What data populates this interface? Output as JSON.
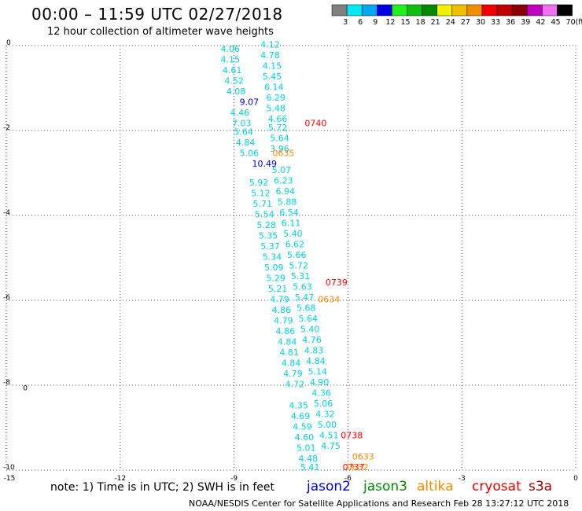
{
  "header": {
    "title": "00:00 – 11:59 UTC 02/27/2018",
    "subtitle": "12 hour collection of altimeter wave heights"
  },
  "colorbar": {
    "colors": [
      "#808080",
      "#00e8f0",
      "#00a8f0",
      "#0000e0",
      "#20f020",
      "#10c010",
      "#008800",
      "#f0f000",
      "#f0c000",
      "#f09000",
      "#f00000",
      "#c00000",
      "#880000",
      "#c000c0",
      "#f070f0",
      "#000000"
    ],
    "labels": [
      "3",
      "6",
      "9",
      "12",
      "15",
      "18",
      "21",
      "24",
      "27",
      "30",
      "33",
      "36",
      "39",
      "42",
      "45",
      "70"
    ],
    "unit": "(ft)"
  },
  "note": "note: 1) Time is in UTC; 2) SWH is in feet",
  "satellites": [
    {
      "name": "jason2",
      "color": "#0000cc"
    },
    {
      "name": "jason3",
      "color": "#008800"
    },
    {
      "name": "altika",
      "color": "#ff8800"
    },
    {
      "name": "cryosat",
      "color": "#dd0000"
    },
    {
      "name": "s3a",
      "color": "#990000"
    }
  ],
  "footer": "NOAA/NESDIS Center for Satellite Applications and Research    Feb 28 13:27:12 UTC 2018",
  "chart_data": {
    "type": "scatter",
    "xlim": [
      -15,
      0
    ],
    "ylim": [
      -10,
      0
    ],
    "xticks": [
      "-15",
      "-12",
      "-9",
      "-6",
      "-3",
      "0"
    ],
    "yticks": [
      "0",
      "-2",
      "-4",
      "-6",
      "-8",
      "-10"
    ],
    "grid": true,
    "tracks": [
      {
        "color": "#00d0e0",
        "points": [
          {
            "x": -9.1,
            "y": -0.15,
            "label": "4.06"
          },
          {
            "x": -9.1,
            "y": -0.4,
            "label": "4.15"
          },
          {
            "x": -9.05,
            "y": -0.65,
            "label": "4.61"
          },
          {
            "x": -9.0,
            "y": -0.9,
            "label": "4.52"
          },
          {
            "x": -8.95,
            "y": -1.15,
            "label": "4.08"
          },
          {
            "x": -8.85,
            "y": -1.65,
            "label": "4.46"
          },
          {
            "x": -8.8,
            "y": -1.9,
            "label": "7.03"
          },
          {
            "x": -8.75,
            "y": -2.1,
            "label": "5.64"
          },
          {
            "x": -8.7,
            "y": -2.35,
            "label": "4.84"
          },
          {
            "x": -8.6,
            "y": -2.6,
            "label": "5.06"
          },
          {
            "x": -8.35,
            "y": -3.3,
            "label": "5.92"
          },
          {
            "x": -8.3,
            "y": -3.55,
            "label": "5.12"
          },
          {
            "x": -8.25,
            "y": -3.8,
            "label": "5.71"
          },
          {
            "x": -8.2,
            "y": -4.05,
            "label": "5.54"
          },
          {
            "x": -8.15,
            "y": -4.3,
            "label": "5.28"
          },
          {
            "x": -8.1,
            "y": -4.55,
            "label": "5.35"
          },
          {
            "x": -8.05,
            "y": -4.8,
            "label": "5.37"
          },
          {
            "x": -8.0,
            "y": -5.05,
            "label": "5.34"
          },
          {
            "x": -7.95,
            "y": -5.3,
            "label": "5.09"
          },
          {
            "x": -7.9,
            "y": -5.55,
            "label": "5.29"
          },
          {
            "x": -7.85,
            "y": -5.8,
            "label": "5.21"
          },
          {
            "x": -7.8,
            "y": -6.05,
            "label": "4.79"
          },
          {
            "x": -7.75,
            "y": -6.3,
            "label": "4.86"
          },
          {
            "x": -7.7,
            "y": -6.55,
            "label": "4.79"
          },
          {
            "x": -7.65,
            "y": -6.8,
            "label": "4.86"
          },
          {
            "x": -7.6,
            "y": -7.05,
            "label": "4.84"
          },
          {
            "x": -7.55,
            "y": -7.3,
            "label": "4.81"
          },
          {
            "x": -7.5,
            "y": -7.55,
            "label": "4.84"
          },
          {
            "x": -7.45,
            "y": -7.8,
            "label": "4.79"
          },
          {
            "x": -7.4,
            "y": -8.05,
            "label": "4.72"
          },
          {
            "x": -7.3,
            "y": -8.55,
            "label": "4.35"
          },
          {
            "x": -7.25,
            "y": -8.8,
            "label": "4.69"
          },
          {
            "x": -7.2,
            "y": -9.05,
            "label": "4.59"
          },
          {
            "x": -7.15,
            "y": -9.3,
            "label": "4.60"
          },
          {
            "x": -7.1,
            "y": -9.55,
            "label": "5.01"
          },
          {
            "x": -7.05,
            "y": -9.8,
            "label": "4.48"
          },
          {
            "x": -7.0,
            "y": -10.0,
            "label": "5.41"
          }
        ]
      },
      {
        "color": "#00d0e0",
        "points": [
          {
            "x": -8.05,
            "y": -0.05,
            "label": "4.12"
          },
          {
            "x": -8.05,
            "y": -0.3,
            "label": "4.78"
          },
          {
            "x": -8.0,
            "y": -0.55,
            "label": "4.15"
          },
          {
            "x": -8.0,
            "y": -0.8,
            "label": "5.45"
          },
          {
            "x": -7.95,
            "y": -1.05,
            "label": "6.14"
          },
          {
            "x": -7.9,
            "y": -1.3,
            "label": "6.29"
          },
          {
            "x": -7.9,
            "y": -1.55,
            "label": "5.48"
          },
          {
            "x": -7.85,
            "y": -1.8,
            "label": "4.66"
          },
          {
            "x": -7.85,
            "y": -2.0,
            "label": "5.72"
          },
          {
            "x": -7.8,
            "y": -2.25,
            "label": "5.64"
          },
          {
            "x": -7.8,
            "y": -2.5,
            "label": "3.96"
          },
          {
            "x": -7.75,
            "y": -3.0,
            "label": "5.07"
          },
          {
            "x": -7.7,
            "y": -3.25,
            "label": "6.23"
          },
          {
            "x": -7.65,
            "y": -3.5,
            "label": "6.94"
          },
          {
            "x": -7.6,
            "y": -3.75,
            "label": "5.88"
          },
          {
            "x": -7.55,
            "y": -4.0,
            "label": "6.54"
          },
          {
            "x": -7.5,
            "y": -4.25,
            "label": "6.11"
          },
          {
            "x": -7.45,
            "y": -4.5,
            "label": "5.40"
          },
          {
            "x": -7.4,
            "y": -4.75,
            "label": "6.62"
          },
          {
            "x": -7.35,
            "y": -5.0,
            "label": "5.66"
          },
          {
            "x": -7.3,
            "y": -5.25,
            "label": "5.72"
          },
          {
            "x": -7.25,
            "y": -5.5,
            "label": "5.31"
          },
          {
            "x": -7.2,
            "y": -5.75,
            "label": "5.63"
          },
          {
            "x": -7.15,
            "y": -6.0,
            "label": "5.47"
          },
          {
            "x": -7.1,
            "y": -6.25,
            "label": "5.68"
          },
          {
            "x": -7.05,
            "y": -6.5,
            "label": "5.64"
          },
          {
            "x": -7.0,
            "y": -6.75,
            "label": "5.40"
          },
          {
            "x": -6.95,
            "y": -7.0,
            "label": "4.76"
          },
          {
            "x": -6.9,
            "y": -7.25,
            "label": "4.83"
          },
          {
            "x": -6.85,
            "y": -7.5,
            "label": "4.84"
          },
          {
            "x": -6.8,
            "y": -7.75,
            "label": "5.14"
          },
          {
            "x": -6.75,
            "y": -8.0,
            "label": "4.90"
          },
          {
            "x": -6.7,
            "y": -8.25,
            "label": "4.36"
          },
          {
            "x": -6.65,
            "y": -8.5,
            "label": "5.06"
          },
          {
            "x": -6.6,
            "y": -8.75,
            "label": "4.32"
          },
          {
            "x": -6.55,
            "y": -9.0,
            "label": "5.00"
          },
          {
            "x": -6.5,
            "y": -9.25,
            "label": "4.51"
          },
          {
            "x": -6.45,
            "y": -9.5,
            "label": "4.75"
          }
        ]
      },
      {
        "color": "#0000cc",
        "points": [
          {
            "x": -8.6,
            "y": -1.4,
            "label": "9.07"
          },
          {
            "x": -8.2,
            "y": -2.85,
            "label": "10.49"
          }
        ]
      },
      {
        "color": "#ff0000",
        "points": [
          {
            "x": -6.85,
            "y": -1.9,
            "label": "0740"
          },
          {
            "x": -6.3,
            "y": -5.65,
            "label": "0739"
          },
          {
            "x": -5.9,
            "y": -9.25,
            "label": "0738"
          },
          {
            "x": -5.85,
            "y": -10.0,
            "label": "0737"
          }
        ]
      },
      {
        "color": "#ff8800",
        "points": [
          {
            "x": -7.7,
            "y": -2.6,
            "label": "0635"
          },
          {
            "x": -6.5,
            "y": -6.05,
            "label": "0634"
          },
          {
            "x": -5.6,
            "y": -9.75,
            "label": "0633"
          },
          {
            "x": -5.75,
            "y": -10.0,
            "label": "0632"
          }
        ]
      }
    ],
    "markers": [
      {
        "x": -14.5,
        "y": -8.05,
        "symbol": "0"
      }
    ]
  }
}
